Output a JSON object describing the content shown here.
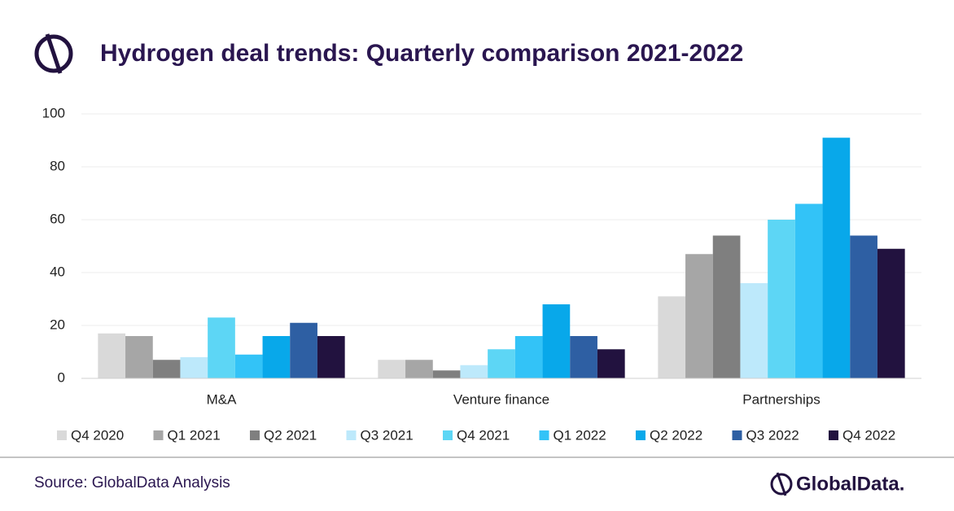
{
  "chart_data": {
    "type": "bar",
    "title": "Hydrogen deal trends: Quarterly comparison 2021-2022",
    "categories": [
      "M&A",
      "Venture finance",
      "Partnerships"
    ],
    "series": [
      {
        "name": "Q4 2020",
        "color": "#d9d9d9",
        "values": [
          17,
          7,
          31
        ]
      },
      {
        "name": "Q1 2021",
        "color": "#a6a6a6",
        "values": [
          16,
          7,
          47
        ]
      },
      {
        "name": "Q2 2021",
        "color": "#7f7f7f",
        "values": [
          7,
          3,
          54
        ]
      },
      {
        "name": "Q3 2021",
        "color": "#bde9fb",
        "values": [
          8,
          5,
          36
        ]
      },
      {
        "name": "Q4 2021",
        "color": "#5dd6f5",
        "values": [
          23,
          11,
          60
        ]
      },
      {
        "name": "Q1 2022",
        "color": "#33c3f7",
        "values": [
          9,
          16,
          66
        ]
      },
      {
        "name": "Q2 2022",
        "color": "#08a8ea",
        "values": [
          16,
          28,
          91
        ]
      },
      {
        "name": "Q3 2022",
        "color": "#2e5fa3",
        "values": [
          21,
          16,
          54
        ]
      },
      {
        "name": "Q4 2022",
        "color": "#22123f",
        "values": [
          16,
          11,
          49
        ]
      }
    ],
    "ylim": [
      0,
      100
    ],
    "yticks": [
      0,
      20,
      40,
      60,
      80,
      100
    ],
    "grid": true,
    "source": "Source: GlobalData Analysis",
    "brand": "GlobalData."
  }
}
